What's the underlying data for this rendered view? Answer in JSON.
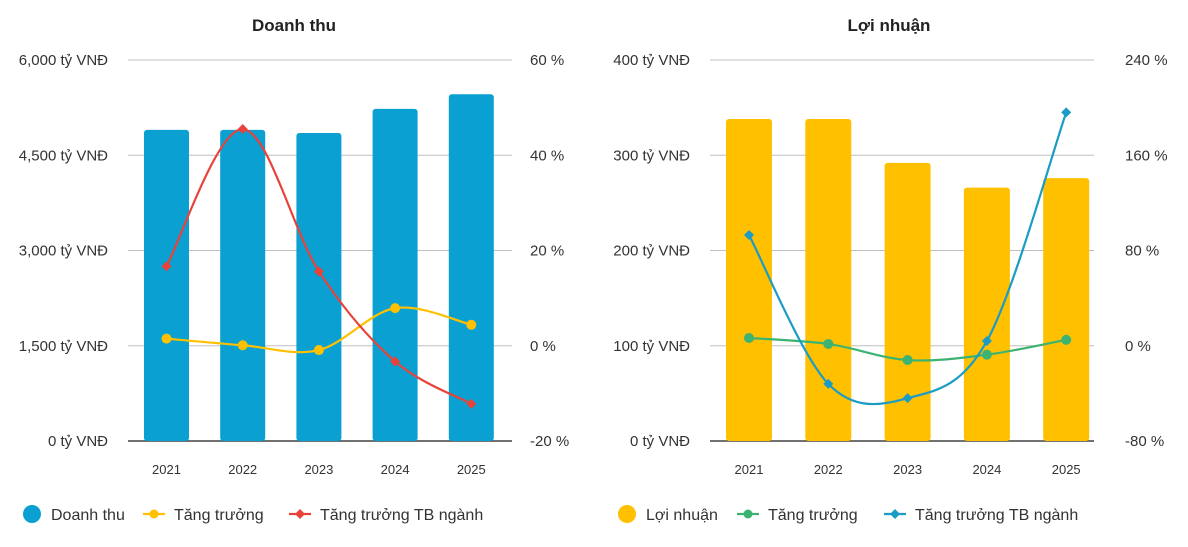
{
  "chart_data": [
    {
      "type": "bar",
      "title": "Doanh thu",
      "categories": [
        "2021",
        "2022",
        "2023",
        "2024",
        "2025"
      ],
      "y_ticks": [
        "0 tỷ VNĐ",
        "1,500 tỷ VNĐ",
        "3,000 tỷ VNĐ",
        "4,500 tỷ VNĐ",
        "6,000 tỷ VNĐ"
      ],
      "y2_ticks": [
        "-20 %",
        "0 %",
        "20 %",
        "40 %",
        "60 %"
      ],
      "ylim": [
        0,
        6000
      ],
      "y2lim": [
        -20,
        60
      ],
      "grid": true,
      "legend_position": "bottom",
      "series": [
        {
          "name": "Doanh thu",
          "kind": "bar",
          "axis": "left",
          "color": "#0aa0d2",
          "values": [
            4900,
            4900,
            4850,
            5230,
            5460
          ]
        },
        {
          "name": "Tăng trưởng",
          "kind": "line",
          "axis": "right",
          "color": "#ffc000",
          "marker": "circle",
          "values": [
            1.5,
            0.1,
            -0.9,
            7.9,
            4.4
          ]
        },
        {
          "name": "Tăng trưởng TB ngành",
          "kind": "line",
          "axis": "right",
          "color": "#e8433a",
          "marker": "diamond",
          "values": [
            16.7,
            45.5,
            15.6,
            -3.3,
            -12.2
          ]
        }
      ]
    },
    {
      "type": "bar",
      "title": "Lợi nhuận",
      "categories": [
        "2021",
        "2022",
        "2023",
        "2024",
        "2025"
      ],
      "y_ticks": [
        "0 tỷ VNĐ",
        "100 tỷ VNĐ",
        "200 tỷ VNĐ",
        "300 tỷ VNĐ",
        "400 tỷ VNĐ"
      ],
      "y2_ticks": [
        "-80 %",
        "0 %",
        "80 %",
        "160 %",
        "240 %"
      ],
      "ylim": [
        0,
        400
      ],
      "y2lim": [
        -80,
        240
      ],
      "grid": true,
      "legend_position": "bottom",
      "series": [
        {
          "name": "Lợi nhuận",
          "kind": "bar",
          "axis": "left",
          "color": "#ffc000",
          "values": [
            338,
            338,
            292,
            266,
            276
          ]
        },
        {
          "name": "Tăng trưởng",
          "kind": "line",
          "axis": "right",
          "color": "#3cb371",
          "marker": "circle",
          "values": [
            6.5,
            1.5,
            -12,
            -7.5,
            5
          ]
        },
        {
          "name": "Tăng trưởng TB ngành",
          "kind": "line",
          "axis": "right",
          "color": "#1a9cc4",
          "marker": "diamond",
          "values": [
            93,
            -32,
            -44,
            4,
            196
          ]
        }
      ]
    }
  ]
}
